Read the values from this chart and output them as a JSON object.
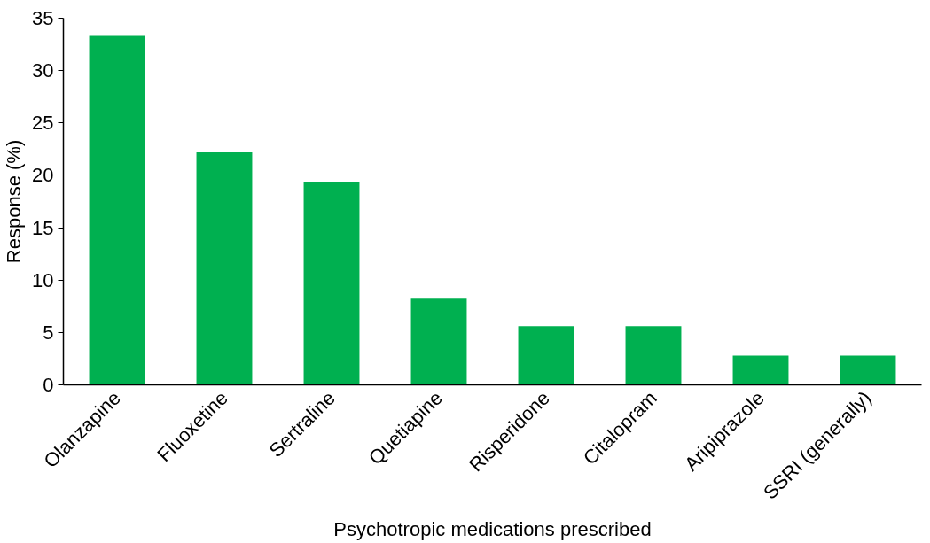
{
  "chart_data": {
    "type": "bar",
    "xlabel": "Psychotropic medications prescribed",
    "ylabel": "Response (%)",
    "categories": [
      "Olanzapine",
      "Fluoxetine",
      "Sertraline",
      "Quetiapine",
      "Risperidone",
      "Citalopram",
      "Aripiprazole",
      "SSRI (generally)"
    ],
    "values": [
      33.3,
      22.2,
      19.4,
      8.3,
      5.6,
      5.6,
      2.8,
      2.8
    ],
    "color": "#00b050",
    "ylim": [
      0,
      35
    ],
    "yticks": [
      0,
      5,
      10,
      15,
      20,
      25,
      30,
      35
    ],
    "grid": false
  }
}
